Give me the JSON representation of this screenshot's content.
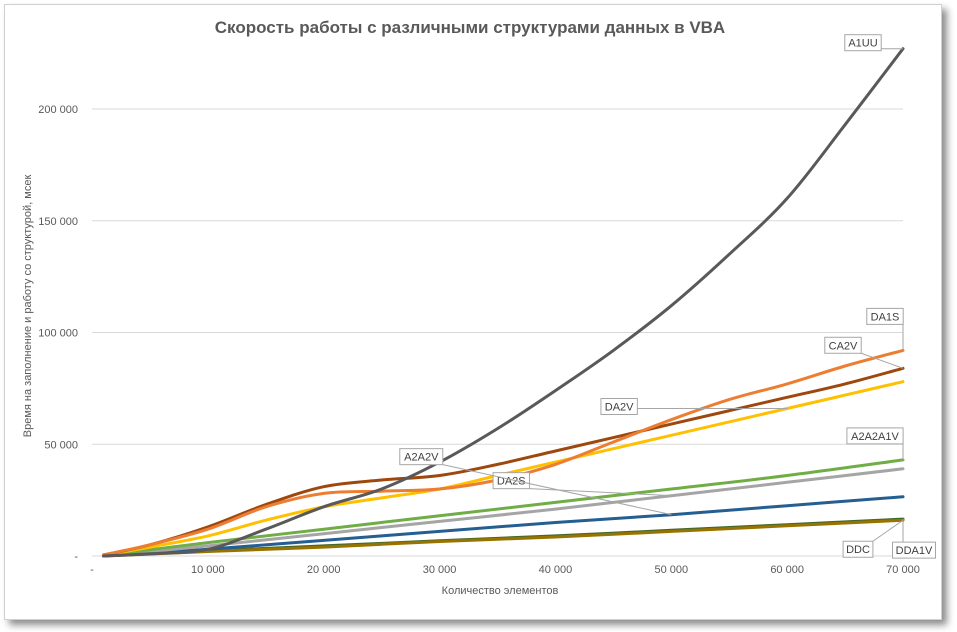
{
  "chart_data": {
    "type": "line",
    "title": "Скорость работы с различными структурами данных в VBA",
    "xlabel": "Количество элементов",
    "ylabel": "Время на заполнение и работу со структурой, мсек",
    "xlim": [
      0,
      70000
    ],
    "ylim": [
      0,
      230000
    ],
    "x_ticks": [
      {
        "value": 0,
        "label": "-"
      },
      {
        "value": 10000,
        "label": "10 000"
      },
      {
        "value": 20000,
        "label": "20 000"
      },
      {
        "value": 30000,
        "label": "30 000"
      },
      {
        "value": 40000,
        "label": "40 000"
      },
      {
        "value": 50000,
        "label": "50 000"
      },
      {
        "value": 60000,
        "label": "60 000"
      },
      {
        "value": 70000,
        "label": "70 000"
      }
    ],
    "y_ticks": [
      {
        "value": 0,
        "label": "-"
      },
      {
        "value": 50000,
        "label": "50 000"
      },
      {
        "value": 100000,
        "label": "100 000"
      },
      {
        "value": 150000,
        "label": "150 000"
      },
      {
        "value": 200000,
        "label": "200 000"
      }
    ],
    "grid": true,
    "series": [
      {
        "name": "A1UU",
        "color": "#595959",
        "x": [
          1000,
          5000,
          10000,
          15000,
          20000,
          25000,
          30000,
          35000,
          40000,
          45000,
          50000,
          55000,
          60000,
          65000,
          70000
        ],
        "y": [
          0,
          1000,
          3000,
          12000,
          22000,
          30000,
          42000,
          57000,
          74000,
          92000,
          112000,
          135000,
          160000,
          193000,
          227000
        ]
      },
      {
        "name": "DA1S",
        "color": "#ED7D31",
        "x": [
          1000,
          5000,
          10000,
          15000,
          20000,
          25000,
          30000,
          35000,
          40000,
          45000,
          50000,
          55000,
          60000,
          65000,
          70000
        ],
        "y": [
          500,
          5000,
          12000,
          22000,
          28000,
          29000,
          30000,
          34000,
          41000,
          51000,
          61000,
          70000,
          77000,
          85000,
          92000
        ]
      },
      {
        "name": "CA2V",
        "color": "#9E480E",
        "x": [
          1000,
          5000,
          10000,
          15000,
          20000,
          25000,
          30000,
          35000,
          40000,
          45000,
          50000,
          55000,
          60000,
          65000,
          70000
        ],
        "y": [
          500,
          5000,
          13000,
          23000,
          31000,
          34000,
          36000,
          41000,
          47000,
          53000,
          59000,
          65000,
          71000,
          77000,
          84000
        ]
      },
      {
        "name": "DA2V",
        "color": "#FFC000",
        "x": [
          1000,
          5000,
          10000,
          15000,
          20000,
          25000,
          30000,
          35000,
          40000,
          45000,
          50000,
          55000,
          60000,
          65000,
          70000
        ],
        "y": [
          300,
          4000,
          9000,
          16000,
          22000,
          26000,
          30000,
          36000,
          42000,
          48000,
          54000,
          60000,
          66000,
          72000,
          78000
        ]
      },
      {
        "name": "A2A2A1V",
        "color": "#70AD47",
        "x": [
          1000,
          10000,
          20000,
          30000,
          40000,
          50000,
          60000,
          70000
        ],
        "y": [
          200,
          6000,
          12000,
          18000,
          24000,
          30000,
          36000,
          43000
        ]
      },
      {
        "name": "DA2S",
        "color": "#A5A5A5",
        "x": [
          1000,
          10000,
          20000,
          30000,
          40000,
          50000,
          60000,
          70000
        ],
        "y": [
          200,
          4500,
          10000,
          15500,
          21000,
          27000,
          33000,
          39000
        ]
      },
      {
        "name": "A2A2V",
        "color": "#255E91",
        "x": [
          1000,
          10000,
          20000,
          30000,
          40000,
          50000,
          60000,
          70000
        ],
        "y": [
          100,
          3000,
          7000,
          11000,
          15000,
          18500,
          22500,
          26500
        ]
      },
      {
        "name": "DDC",
        "color": "#997300",
        "x": [
          1000,
          10000,
          20000,
          30000,
          40000,
          50000,
          60000,
          70000
        ],
        "y": [
          0,
          2000,
          4000,
          6500,
          8500,
          11000,
          13500,
          16000
        ]
      },
      {
        "name": "DDA1V",
        "color": "#43682B",
        "x": [
          1000,
          10000,
          20000,
          30000,
          40000,
          50000,
          60000,
          70000
        ],
        "y": [
          0,
          2300,
          4500,
          6800,
          9000,
          11500,
          14000,
          16500
        ]
      }
    ],
    "data_labels": [
      {
        "series": "A1UU",
        "text": "A1UU"
      },
      {
        "series": "DA1S",
        "text": "DA1S"
      },
      {
        "series": "CA2V",
        "text": "CA2V"
      },
      {
        "series": "DA2V",
        "text": "DA2V"
      },
      {
        "series": "A2A2A1V",
        "text": "A2A2A1V"
      },
      {
        "series": "DA2S",
        "text": "DA2S"
      },
      {
        "series": "A2A2V",
        "text": "A2A2V"
      },
      {
        "series": "DDC",
        "text": "DDC"
      },
      {
        "series": "DDA1V",
        "text": "DDA1V"
      }
    ]
  }
}
